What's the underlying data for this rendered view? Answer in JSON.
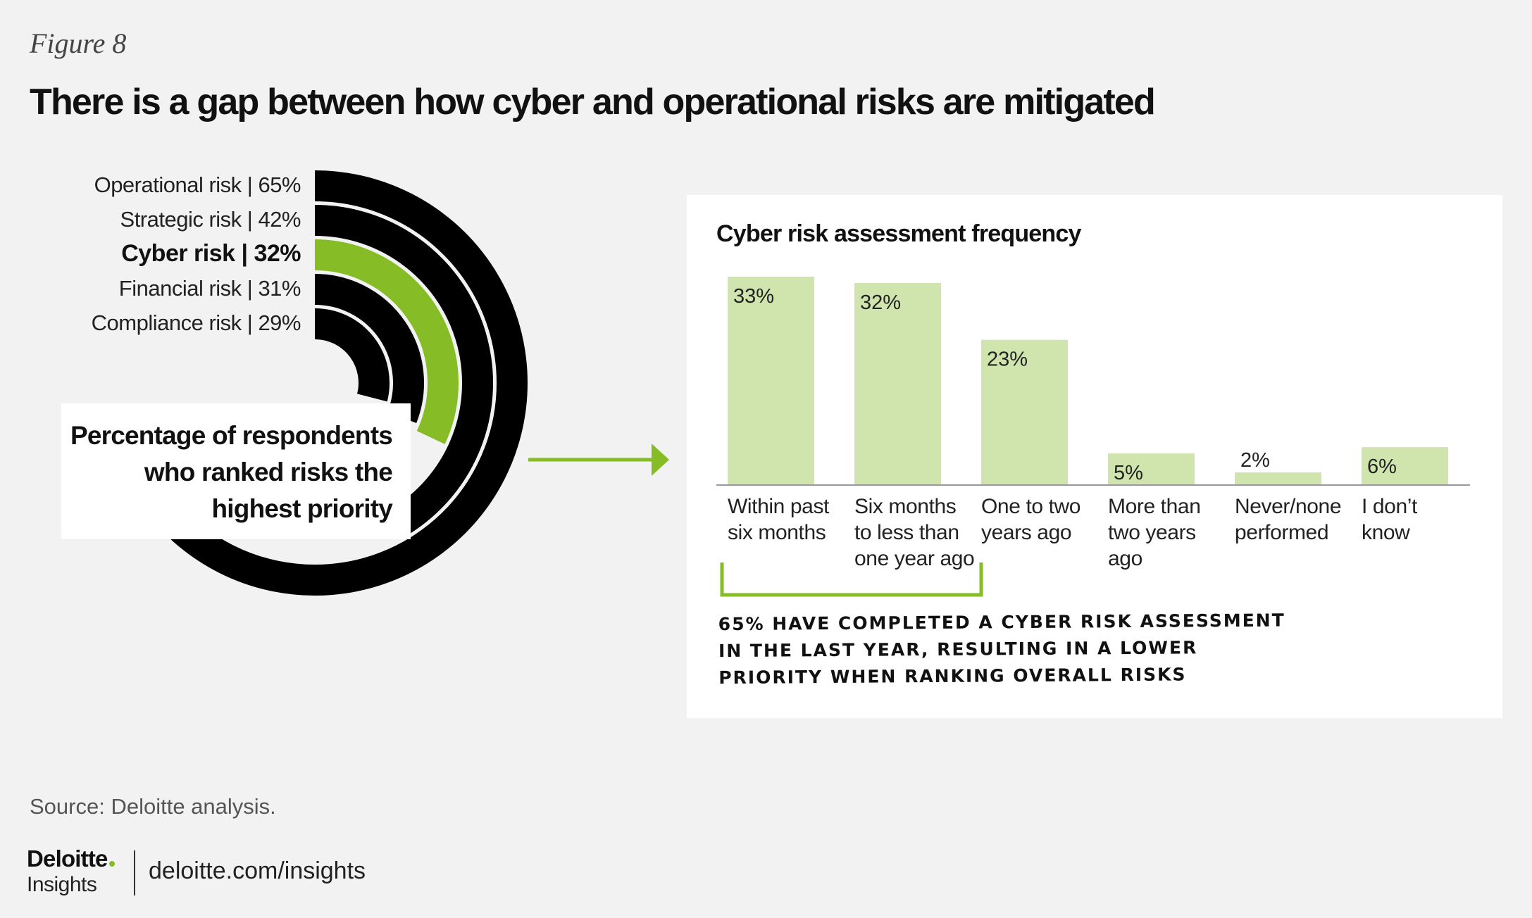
{
  "figure_label": "Figure 8",
  "title": "There is a gap between how cyber and operational risks are mitigated",
  "colors": {
    "background": "#f2f2f2",
    "arc_default": "#000000",
    "arc_highlight": "#86bc25",
    "bar_fill": "#cfe5ad",
    "bracket": "#86bc25"
  },
  "chart_data": [
    {
      "type": "radial-bar",
      "title": "",
      "series": [
        {
          "label": "Operational risk | 65%",
          "value": 65,
          "highlight": false
        },
        {
          "label": "Strategic risk | 42%",
          "value": 42,
          "highlight": false
        },
        {
          "label": "Cyber risk | 32%",
          "value": 32,
          "highlight": true
        },
        {
          "label": "Financial risk | 31%",
          "value": 31,
          "highlight": false
        },
        {
          "label": "Compliance risk | 29%",
          "value": 29,
          "highlight": false
        }
      ],
      "caption": [
        "Percentage of respondents",
        "who ranked risks the",
        "highest priority"
      ]
    },
    {
      "type": "bar",
      "title": "Cyber risk assessment frequency",
      "categories": [
        [
          "Within past",
          "six months"
        ],
        [
          "Six months",
          "to less than",
          "one year ago"
        ],
        [
          "One to two",
          "years ago"
        ],
        [
          "More than",
          "two  years",
          "ago"
        ],
        [
          "Never/none",
          "performed"
        ],
        [
          "I don’t",
          "know"
        ]
      ],
      "values": [
        33,
        32,
        23,
        5,
        2,
        6
      ],
      "value_labels": [
        "33%",
        "32%",
        "23%",
        "5%",
        "2%",
        "6%"
      ],
      "ylim": [
        0,
        33
      ],
      "grid": false,
      "annotation": [
        "65% have completed a cyber risk assessment",
        "in the last year, resulting in a lower",
        "priority when ranking overall risks"
      ]
    }
  ],
  "source": "Source: Deloitte analysis.",
  "logo": {
    "main": "Deloitte",
    "sub": "Insights"
  },
  "url": "deloitte.com/insights"
}
